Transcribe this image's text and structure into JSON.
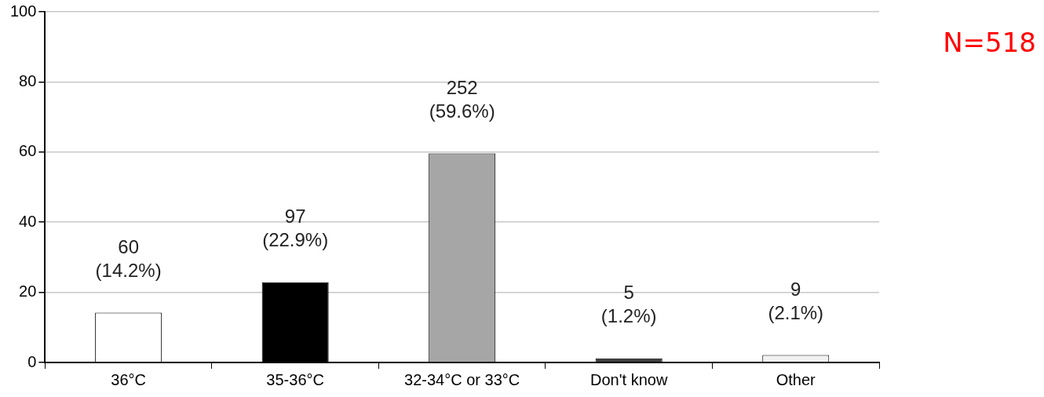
{
  "chart_data": {
    "type": "bar",
    "categories": [
      "36°C",
      "35-36°C",
      "32-34°C or 33°C",
      "Don't know",
      "Other"
    ],
    "values": [
      14.2,
      22.9,
      59.6,
      1.2,
      2.1
    ],
    "colors": [
      "#ffffff",
      "#000000",
      "#a6a6a6",
      "#404040",
      "#f2f2f2"
    ],
    "value_labels": [
      "60\n(14.2%)",
      "97\n(22.9%)",
      "252\n(59.6%)",
      "5\n(1.2%)",
      "9\n(2.1%)"
    ],
    "ylim": [
      0,
      100
    ],
    "yticks": [
      0,
      20,
      40,
      60,
      80,
      100
    ],
    "grid": "y",
    "legend": false,
    "annotations": [
      "N=518"
    ]
  }
}
